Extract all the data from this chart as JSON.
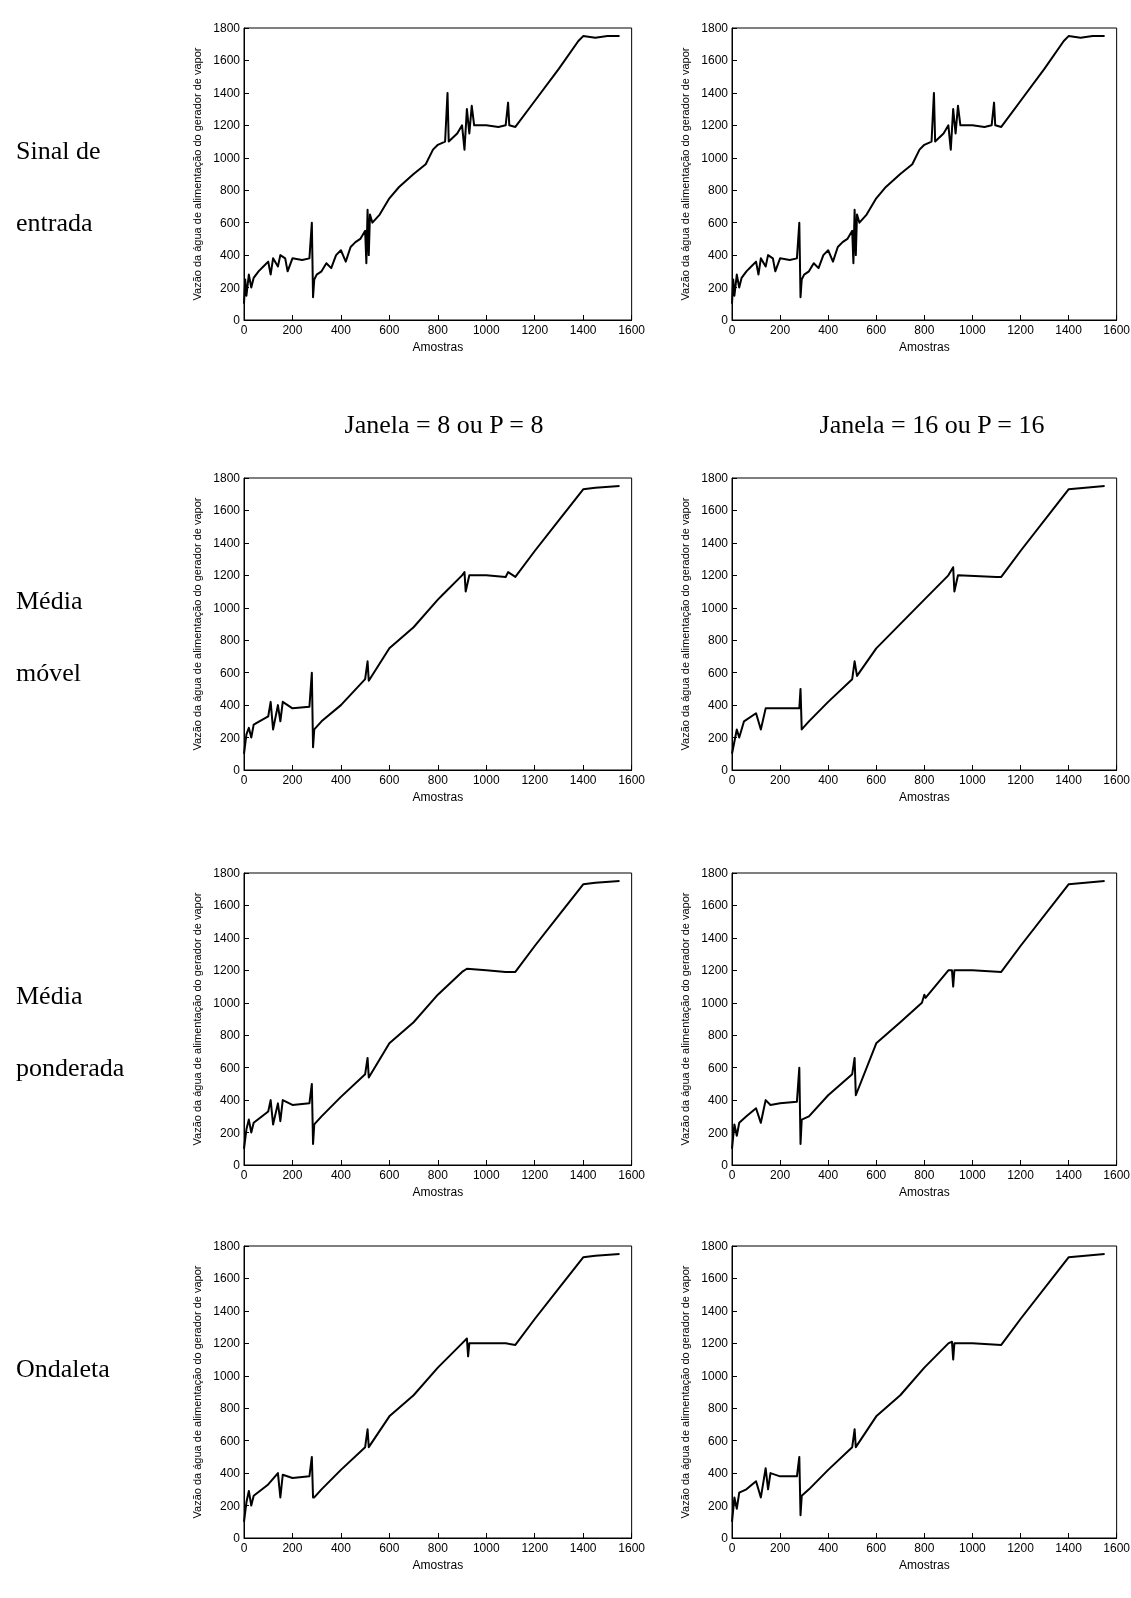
{
  "chart_data": [
    {
      "type": "line",
      "annotations": [
        "Sinal de entrada"
      ],
      "xlabel": "Amostras",
      "ylabel": "Vazão da água de alimentação do gerador de vapor",
      "color": "#000000",
      "xlim": [
        0,
        1600
      ],
      "ylim": [
        0,
        1800
      ],
      "xticks": [
        0,
        200,
        400,
        600,
        800,
        1000,
        1200,
        1400,
        1600
      ],
      "yticks": [
        0,
        200,
        400,
        600,
        800,
        1000,
        1200,
        1400,
        1600,
        1800
      ],
      "x": [
        0,
        5,
        10,
        20,
        30,
        40,
        60,
        80,
        100,
        110,
        120,
        140,
        150,
        170,
        180,
        200,
        240,
        270,
        280,
        285,
        290,
        300,
        320,
        340,
        360,
        380,
        400,
        420,
        440,
        460,
        480,
        500,
        505,
        510,
        515,
        520,
        530,
        560,
        600,
        640,
        700,
        750,
        780,
        800,
        830,
        840,
        845,
        880,
        900,
        910,
        920,
        930,
        940,
        950,
        1000,
        1050,
        1080,
        1090,
        1095,
        1120,
        1200,
        1300,
        1380,
        1400,
        1450,
        1500,
        1550
      ],
      "values": [
        100,
        250,
        150,
        280,
        200,
        260,
        300,
        330,
        360,
        280,
        380,
        330,
        400,
        380,
        300,
        380,
        370,
        380,
        600,
        140,
        250,
        280,
        300,
        350,
        320,
        400,
        430,
        360,
        450,
        480,
        500,
        550,
        350,
        680,
        400,
        650,
        600,
        650,
        750,
        820,
        900,
        960,
        1050,
        1080,
        1100,
        1400,
        1100,
        1150,
        1200,
        1050,
        1300,
        1150,
        1320,
        1200,
        1200,
        1190,
        1200,
        1340,
        1200,
        1190,
        1350,
        1550,
        1720,
        1750,
        1740,
        1750,
        1750
      ]
    },
    {
      "type": "line",
      "xlabel": "Amostras",
      "ylabel": "Vazão da água de alimentação do gerador de vapor",
      "color": "#000000",
      "xlim": [
        0,
        1600
      ],
      "ylim": [
        0,
        1800
      ],
      "xticks": [
        0,
        200,
        400,
        600,
        800,
        1000,
        1200,
        1400,
        1600
      ],
      "yticks": [
        0,
        200,
        400,
        600,
        800,
        1000,
        1200,
        1400,
        1600,
        1800
      ],
      "x": [
        0,
        5,
        10,
        20,
        30,
        40,
        60,
        80,
        100,
        110,
        120,
        140,
        150,
        170,
        180,
        200,
        240,
        270,
        280,
        285,
        290,
        300,
        320,
        340,
        360,
        380,
        400,
        420,
        440,
        460,
        480,
        500,
        505,
        510,
        515,
        520,
        530,
        560,
        600,
        640,
        700,
        750,
        780,
        800,
        830,
        840,
        845,
        880,
        900,
        910,
        920,
        930,
        940,
        950,
        1000,
        1050,
        1080,
        1090,
        1095,
        1120,
        1200,
        1300,
        1380,
        1400,
        1450,
        1500,
        1550
      ],
      "values": [
        100,
        250,
        150,
        280,
        200,
        260,
        300,
        330,
        360,
        280,
        380,
        330,
        400,
        380,
        300,
        380,
        370,
        380,
        600,
        140,
        250,
        280,
        300,
        350,
        320,
        400,
        430,
        360,
        450,
        480,
        500,
        550,
        350,
        680,
        400,
        650,
        600,
        650,
        750,
        820,
        900,
        960,
        1050,
        1080,
        1100,
        1400,
        1100,
        1150,
        1200,
        1050,
        1300,
        1150,
        1320,
        1200,
        1200,
        1190,
        1200,
        1340,
        1200,
        1190,
        1350,
        1550,
        1720,
        1750,
        1740,
        1750,
        1750
      ]
    },
    {
      "type": "line",
      "title": "Janela = 8 ou P = 8",
      "annotations": [
        "Média móvel"
      ],
      "xlabel": "Amostras",
      "ylabel": "Vazão da água de alimentação do gerador de vapor",
      "color": "#000000",
      "xlim": [
        0,
        1600
      ],
      "ylim": [
        0,
        1800
      ],
      "xticks": [
        0,
        200,
        400,
        600,
        800,
        1000,
        1200,
        1400,
        1600
      ],
      "yticks": [
        0,
        200,
        400,
        600,
        800,
        1000,
        1200,
        1400,
        1600,
        1800
      ],
      "x": [
        0,
        10,
        20,
        30,
        40,
        100,
        110,
        120,
        140,
        150,
        160,
        200,
        270,
        280,
        285,
        290,
        320,
        400,
        500,
        510,
        515,
        600,
        700,
        800,
        820,
        900,
        910,
        915,
        930,
        1000,
        1080,
        1090,
        1120,
        1200,
        1300,
        1400,
        1450,
        1550
      ],
      "values": [
        100,
        220,
        260,
        200,
        280,
        330,
        420,
        250,
        400,
        300,
        420,
        380,
        390,
        600,
        140,
        250,
        300,
        400,
        560,
        670,
        550,
        750,
        880,
        1050,
        1080,
        1200,
        1220,
        1100,
        1200,
        1200,
        1190,
        1220,
        1190,
        1350,
        1540,
        1730,
        1740,
        1750
      ]
    },
    {
      "type": "line",
      "title": "Janela = 16 ou P = 16",
      "xlabel": "Amostras",
      "ylabel": "Vazão da água de alimentação do gerador de vapor",
      "color": "#000000",
      "xlim": [
        0,
        1600
      ],
      "ylim": [
        0,
        1800
      ],
      "xticks": [
        0,
        200,
        400,
        600,
        800,
        1000,
        1200,
        1400,
        1600
      ],
      "yticks": [
        0,
        200,
        400,
        600,
        800,
        1000,
        1200,
        1400,
        1600,
        1800
      ],
      "x": [
        0,
        20,
        30,
        50,
        100,
        120,
        140,
        200,
        280,
        285,
        290,
        320,
        400,
        500,
        510,
        520,
        600,
        800,
        900,
        920,
        925,
        940,
        1100,
        1120,
        1200,
        1400,
        1550
      ],
      "values": [
        100,
        250,
        200,
        300,
        350,
        250,
        380,
        380,
        380,
        500,
        250,
        300,
        420,
        560,
        670,
        580,
        750,
        1050,
        1200,
        1250,
        1100,
        1200,
        1190,
        1190,
        1350,
        1730,
        1750
      ]
    },
    {
      "type": "line",
      "annotations": [
        "Média ponderada"
      ],
      "xlabel": "Amostras",
      "ylabel": "Vazão da água de alimentação do gerador de vapor",
      "color": "#000000",
      "xlim": [
        0,
        1600
      ],
      "ylim": [
        0,
        1800
      ],
      "xticks": [
        0,
        200,
        400,
        600,
        800,
        1000,
        1200,
        1400,
        1600
      ],
      "yticks": [
        0,
        200,
        400,
        600,
        800,
        1000,
        1200,
        1400,
        1600,
        1800
      ],
      "x": [
        0,
        10,
        20,
        30,
        40,
        100,
        110,
        120,
        140,
        150,
        160,
        200,
        270,
        280,
        285,
        290,
        320,
        400,
        500,
        510,
        515,
        600,
        700,
        800,
        900,
        920,
        1000,
        1080,
        1120,
        1200,
        1300,
        1400,
        1450,
        1550
      ],
      "values": [
        100,
        220,
        280,
        200,
        260,
        330,
        400,
        250,
        380,
        270,
        400,
        370,
        380,
        500,
        130,
        250,
        300,
        420,
        560,
        660,
        540,
        750,
        880,
        1050,
        1190,
        1210,
        1200,
        1190,
        1190,
        1350,
        1540,
        1730,
        1740,
        1750
      ]
    },
    {
      "type": "line",
      "xlabel": "Amostras",
      "ylabel": "Vazão da água de alimentação do gerador de vapor",
      "color": "#000000",
      "xlim": [
        0,
        1600
      ],
      "ylim": [
        0,
        1800
      ],
      "xticks": [
        0,
        200,
        400,
        600,
        800,
        1000,
        1200,
        1400,
        1600
      ],
      "yticks": [
        0,
        200,
        400,
        600,
        800,
        1000,
        1200,
        1400,
        1600,
        1800
      ],
      "x": [
        0,
        10,
        20,
        30,
        60,
        100,
        120,
        140,
        160,
        200,
        270,
        280,
        285,
        290,
        320,
        400,
        500,
        510,
        515,
        600,
        700,
        790,
        800,
        805,
        900,
        915,
        920,
        925,
        1000,
        1120,
        1200,
        1400,
        1550
      ],
      "values": [
        100,
        250,
        180,
        260,
        300,
        350,
        260,
        400,
        370,
        380,
        390,
        600,
        130,
        280,
        300,
        430,
        560,
        660,
        430,
        750,
        880,
        1000,
        1050,
        1030,
        1200,
        1200,
        1100,
        1200,
        1200,
        1190,
        1350,
        1730,
        1750
      ]
    },
    {
      "type": "line",
      "annotations": [
        "Ondaleta"
      ],
      "xlabel": "Amostras",
      "ylabel": "Vazão da água de alimentação do gerador de vapor",
      "color": "#000000",
      "xlim": [
        0,
        1600
      ],
      "ylim": [
        0,
        1800
      ],
      "xticks": [
        0,
        200,
        400,
        600,
        800,
        1000,
        1200,
        1400,
        1600
      ],
      "yticks": [
        0,
        200,
        400,
        600,
        800,
        1000,
        1200,
        1400,
        1600,
        1800
      ],
      "x": [
        0,
        10,
        20,
        30,
        40,
        100,
        140,
        150,
        160,
        200,
        270,
        280,
        285,
        290,
        320,
        400,
        500,
        510,
        515,
        600,
        700,
        800,
        900,
        920,
        925,
        930,
        1000,
        1080,
        1120,
        1200,
        1300,
        1400,
        1450,
        1550
      ],
      "values": [
        100,
        220,
        290,
        200,
        260,
        330,
        400,
        250,
        390,
        370,
        380,
        500,
        250,
        250,
        300,
        420,
        560,
        670,
        560,
        750,
        880,
        1050,
        1200,
        1230,
        1120,
        1200,
        1200,
        1200,
        1190,
        1350,
        1540,
        1730,
        1740,
        1750
      ]
    },
    {
      "type": "line",
      "xlabel": "Amostras",
      "ylabel": "Vazão da água de alimentação do gerador de vapor",
      "color": "#000000",
      "xlim": [
        0,
        1600
      ],
      "ylim": [
        0,
        1800
      ],
      "xticks": [
        0,
        200,
        400,
        600,
        800,
        1000,
        1200,
        1400,
        1600
      ],
      "yticks": [
        0,
        200,
        400,
        600,
        800,
        1000,
        1200,
        1400,
        1600,
        1800
      ],
      "x": [
        0,
        10,
        20,
        30,
        60,
        100,
        120,
        140,
        150,
        160,
        200,
        270,
        280,
        285,
        290,
        320,
        400,
        500,
        510,
        515,
        600,
        700,
        800,
        900,
        915,
        920,
        925,
        1000,
        1120,
        1200,
        1400,
        1550
      ],
      "values": [
        100,
        250,
        180,
        280,
        300,
        350,
        250,
        430,
        300,
        400,
        380,
        380,
        500,
        140,
        260,
        300,
        420,
        560,
        670,
        560,
        750,
        880,
        1050,
        1200,
        1210,
        1100,
        1200,
        1200,
        1190,
        1350,
        1730,
        1750
      ]
    }
  ]
}
